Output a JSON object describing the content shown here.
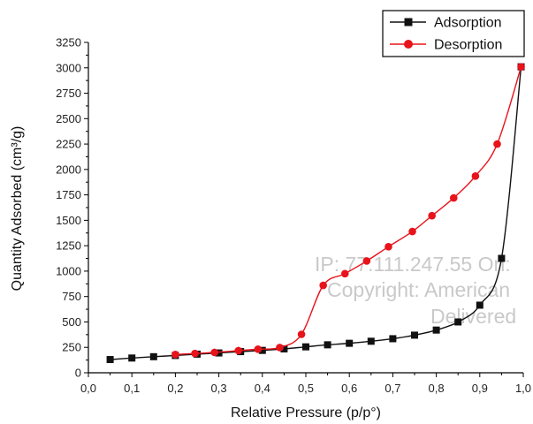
{
  "chart_data": {
    "type": "line",
    "xlabel": "Relative Pressure (p/p°)",
    "ylabel": "Quantity Adsorbed (cm³/g)",
    "xlim": [
      0.0,
      1.0
    ],
    "ylim": [
      0,
      3250
    ],
    "xticks": [
      0.0,
      0.1,
      0.2,
      0.3,
      0.4,
      0.5,
      0.6,
      0.7,
      0.8,
      0.9,
      1.0
    ],
    "xtick_labels": [
      "0,0",
      "0,1",
      "0,2",
      "0,3",
      "0,4",
      "0,5",
      "0,6",
      "0,7",
      "0,8",
      "0,9",
      "1,0"
    ],
    "yticks": [
      0,
      250,
      500,
      750,
      1000,
      1250,
      1500,
      1750,
      2000,
      2250,
      2500,
      2750,
      3000,
      3250
    ],
    "ytick_labels": [
      "0",
      "250",
      "500",
      "750",
      "1000",
      "1250",
      "1500",
      "1750",
      "2000",
      "2250",
      "2500",
      "2750",
      "3000",
      "3250"
    ],
    "grid": false,
    "legend_position": "top-right",
    "series": [
      {
        "name": "Adsorption",
        "color": "#111111",
        "marker": "square",
        "x": [
          0.05,
          0.1,
          0.15,
          0.2,
          0.25,
          0.3,
          0.35,
          0.4,
          0.45,
          0.5,
          0.55,
          0.6,
          0.65,
          0.7,
          0.75,
          0.8,
          0.85,
          0.9,
          0.95,
          0.995
        ],
        "y": [
          130,
          145,
          158,
          170,
          183,
          195,
          208,
          220,
          235,
          255,
          275,
          290,
          310,
          335,
          370,
          420,
          500,
          665,
          1125,
          3010
        ]
      },
      {
        "name": "Desorption",
        "color": "#e8131b",
        "marker": "circle",
        "x": [
          0.2,
          0.245,
          0.29,
          0.345,
          0.39,
          0.44,
          0.49,
          0.54,
          0.59,
          0.64,
          0.69,
          0.745,
          0.79,
          0.84,
          0.89,
          0.94,
          0.995
        ],
        "y": [
          180,
          190,
          200,
          218,
          232,
          248,
          378,
          860,
          975,
          1100,
          1240,
          1390,
          1545,
          1720,
          1935,
          2250,
          3010
        ]
      }
    ],
    "watermark": [
      "IP: 77.111.247.55 On:",
      "Copyright: American",
      "Delivered"
    ]
  }
}
